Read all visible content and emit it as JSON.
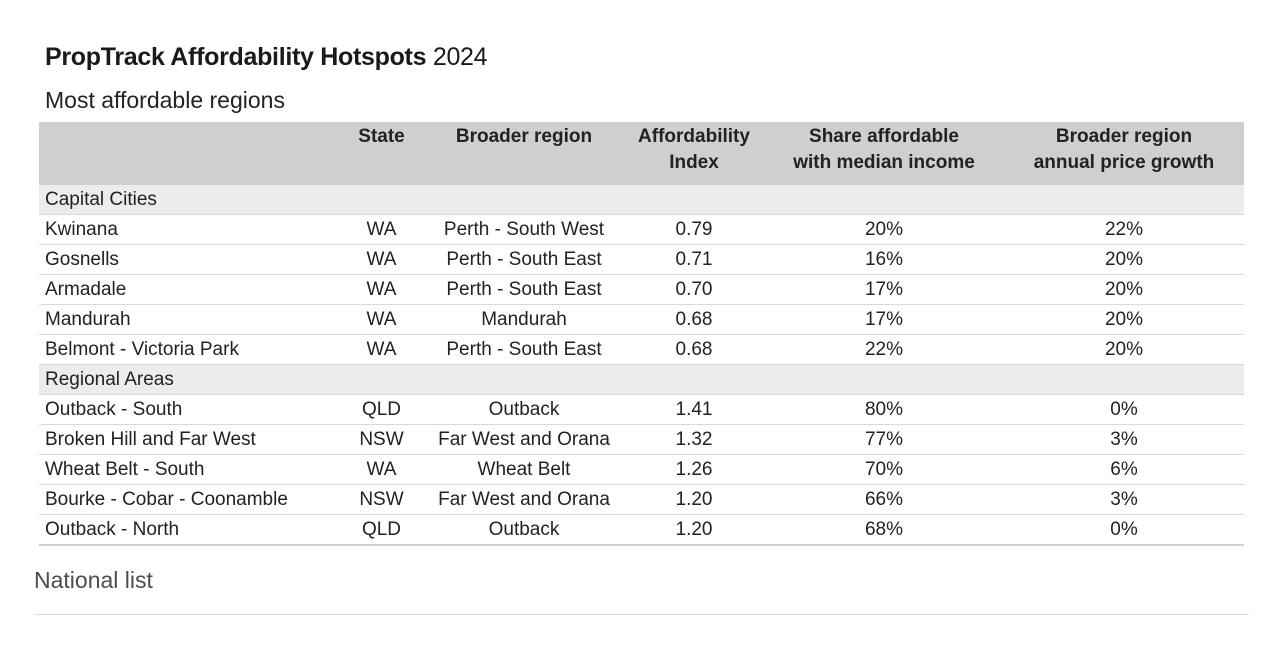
{
  "title": {
    "bold": "PropTrack Affordability Hotspots",
    "year": "2024"
  },
  "subtitle": "Most affordable regions",
  "table": {
    "headers": {
      "name": "",
      "state": "State",
      "region": "Broader region",
      "index_line1": "Affordability",
      "index_line2": "Index",
      "share_line1": "Share affordable",
      "share_line2": "with median income",
      "growth_line1": "Broader region",
      "growth_line2": "annual price growth"
    },
    "groups": [
      {
        "label": "Capital Cities",
        "rows": [
          {
            "name": "Kwinana",
            "state": "WA",
            "region": "Perth - South West",
            "index": "0.79",
            "share": "20%",
            "growth": "22%"
          },
          {
            "name": "Gosnells",
            "state": "WA",
            "region": "Perth - South East",
            "index": "0.71",
            "share": "16%",
            "growth": "20%"
          },
          {
            "name": "Armadale",
            "state": "WA",
            "region": "Perth - South East",
            "index": "0.70",
            "share": "17%",
            "growth": "20%"
          },
          {
            "name": "Mandurah",
            "state": "WA",
            "region": "Mandurah",
            "index": "0.68",
            "share": "17%",
            "growth": "20%"
          },
          {
            "name": "Belmont - Victoria Park",
            "state": "WA",
            "region": "Perth - South East",
            "index": "0.68",
            "share": "22%",
            "growth": "20%"
          }
        ]
      },
      {
        "label": "Regional Areas",
        "rows": [
          {
            "name": "Outback - South",
            "state": "QLD",
            "region": "Outback",
            "index": "1.41",
            "share": "80%",
            "growth": "0%"
          },
          {
            "name": "Broken Hill and Far West",
            "state": "NSW",
            "region": "Far West and Orana",
            "index": "1.32",
            "share": "77%",
            "growth": "3%"
          },
          {
            "name": "Wheat Belt - South",
            "state": "WA",
            "region": "Wheat Belt",
            "index": "1.26",
            "share": "70%",
            "growth": "6%"
          },
          {
            "name": "Bourke - Cobar - Coonamble",
            "state": "NSW",
            "region": "Far West and Orana",
            "index": "1.20",
            "share": "66%",
            "growth": "3%"
          },
          {
            "name": "Outback - North",
            "state": "QLD",
            "region": "Outback",
            "index": "1.20",
            "share": "68%",
            "growth": "0%"
          }
        ]
      }
    ]
  },
  "footer": {
    "national_link": "National list"
  },
  "colors": {
    "header_bg": "#cfcfcf",
    "group_bg": "#ececec",
    "row_border": "#d9d9d9"
  }
}
